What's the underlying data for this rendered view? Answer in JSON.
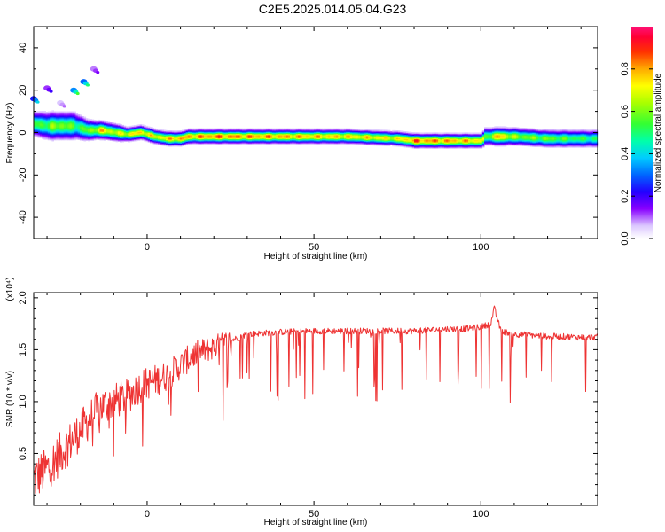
{
  "title": "C2E5.2025.014.05.04.G23",
  "chart_data": [
    {
      "type": "heatmap",
      "xlabel": "Height of straight line (km)",
      "ylabel": "Frequency (Hz)",
      "xlim": [
        -34,
        135
      ],
      "ylim": [
        -50,
        50
      ],
      "xticks": [
        "0",
        "50",
        "100"
      ],
      "yticks": [
        "40",
        "20",
        "0",
        "-20",
        "-40"
      ],
      "colorbar": {
        "label": "Normalized spectral amplitude",
        "ticks": [
          "0.0",
          "0.2",
          "0.4",
          "0.6",
          "0.8"
        ],
        "range": [
          0,
          1
        ]
      },
      "ridge": {
        "x": [
          -34,
          -30,
          -26,
          -22,
          -18,
          -14,
          -10,
          -6,
          -2,
          2,
          6,
          10,
          12,
          20,
          40,
          60,
          75,
          80,
          90,
          100,
          101,
          105,
          110,
          120,
          135
        ],
        "y": [
          4,
          3,
          3,
          3,
          1,
          1,
          0,
          -1,
          0,
          -2,
          -3,
          -3,
          -2,
          -2,
          -2,
          -2,
          -3,
          -4,
          -4,
          -4,
          -2,
          -2,
          -2,
          -3,
          -3
        ],
        "amplitude": [
          0.6,
          0.65,
          0.7,
          0.6,
          0.65,
          0.85,
          0.75,
          0.8,
          0.85,
          0.8,
          0.85,
          0.9,
          0.9,
          0.95,
          0.9,
          0.85,
          0.8,
          0.95,
          0.9,
          0.85,
          0.6,
          0.9,
          0.7,
          0.65,
          0.55
        ],
        "width_hz": [
          7,
          8,
          8,
          8,
          6,
          5,
          5,
          4,
          4,
          4,
          4,
          4,
          4,
          4,
          4,
          4,
          4,
          4,
          4,
          4,
          5,
          5,
          5,
          5,
          5
        ]
      },
      "upper_branch": {
        "x": [
          -34,
          -30,
          -26,
          -22,
          -19,
          -16
        ],
        "y": [
          16,
          21,
          14,
          20,
          24,
          30
        ],
        "amplitude": [
          0.4,
          0.2,
          0.1,
          0.55,
          0.5,
          0.15
        ]
      }
    },
    {
      "type": "line",
      "xlabel": "Height of straight line (km)",
      "ylabel": "SNR (10 * v/v)",
      "scale_note": "(x10⁴)",
      "xlim": [
        -34,
        135
      ],
      "ylim": [
        0,
        2.05
      ],
      "xticks": [
        "0",
        "50",
        "100"
      ],
      "yticks": [
        "2.0",
        "1.5",
        "1.0",
        "0.5"
      ],
      "series": [
        {
          "color": "#ee3333",
          "x": [
            -34,
            -30,
            -26,
            -22,
            -18,
            -14,
            -10,
            -6,
            -2,
            2,
            6,
            10,
            14,
            18,
            22,
            26,
            30,
            40,
            50,
            60,
            70,
            80,
            90,
            95,
            100,
            103,
            104,
            106,
            110,
            120,
            130,
            135
          ],
          "y": [
            0.25,
            0.35,
            0.5,
            0.65,
            0.8,
            0.95,
            1.0,
            1.05,
            1.15,
            1.2,
            1.25,
            1.35,
            1.45,
            1.5,
            1.55,
            1.6,
            1.65,
            1.67,
            1.68,
            1.68,
            1.68,
            1.68,
            1.7,
            1.7,
            1.72,
            1.75,
            1.9,
            1.68,
            1.65,
            1.63,
            1.62,
            1.62
          ]
        }
      ]
    }
  ]
}
